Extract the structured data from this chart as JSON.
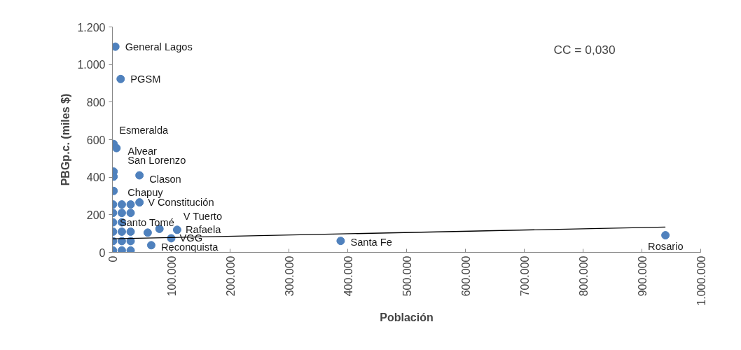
{
  "chart_data": {
    "type": "scatter",
    "xlabel": "Población",
    "ylabel": "PBGp.c. (miles $)",
    "xlim": [
      0,
      1000000
    ],
    "ylim": [
      0,
      1200
    ],
    "xticks": [
      0,
      {
        "value": 100000,
        "label": "100.000"
      },
      {
        "value": 200000,
        "label": "200.000"
      },
      {
        "value": 300000,
        "label": "300.000"
      },
      {
        "value": 400000,
        "label": "400.000"
      },
      {
        "value": 500000,
        "label": "500.000"
      },
      {
        "value": 600000,
        "label": "600.000"
      },
      {
        "value": 700000,
        "label": "700.000"
      },
      {
        "value": 800000,
        "label": "800.000"
      },
      {
        "value": 900000,
        "label": "900.000"
      },
      {
        "value": 1000000,
        "label": "1.000.000"
      }
    ],
    "yticks": [
      0,
      200,
      400,
      600,
      800,
      {
        "value": 1000,
        "label": "1.000"
      },
      {
        "value": 1200,
        "label": "1.200"
      }
    ],
    "grid": false,
    "marker": "circle",
    "series": [
      {
        "color": "#4f81bd",
        "x": [
          5000,
          14000,
          2000,
          7000,
          46000,
          2000,
          2000,
          2000,
          46000,
          80000,
          60000,
          110000,
          100000,
          66000,
          388000,
          940000,
          1000,
          16000,
          31000,
          1000,
          16000,
          31000,
          1000,
          16000,
          31000,
          1000,
          16000,
          1000,
          16000,
          31000,
          1000,
          16000,
          31000
        ],
        "values": [
          1095,
          923,
          577,
          555,
          410,
          430,
          403,
          327,
          266,
          125,
          105,
          120,
          75,
          38,
          61,
          91,
          10,
          10,
          10,
          60,
          60,
          60,
          110,
          110,
          110,
          160,
          160,
          210,
          210,
          210,
          255,
          255,
          255
        ]
      },
      {
        "type": "line",
        "marker": "none",
        "color": "#000000",
        "x": [
          0,
          940000
        ],
        "values": [
          72,
          135
        ]
      }
    ],
    "annotations": [
      {
        "text": "General Lagos",
        "x": 5000,
        "y": 1095
      },
      {
        "text": "PGSM",
        "x": 14000,
        "y": 923
      },
      {
        "text": "Esmeralda",
        "x": 2000,
        "y": 577
      },
      {
        "text": "Alvear",
        "x": 7000,
        "y": 555
      },
      {
        "text": "San Lorenzo",
        "x": 2000,
        "y": 430
      },
      {
        "text": "Clason",
        "x": 46000,
        "y": 410
      },
      {
        "text": "Chapuy",
        "x": 2000,
        "y": 327
      },
      {
        "text": "V Constitución",
        "x": 46000,
        "y": 266
      },
      {
        "text": "V Tuerto",
        "x": 80000,
        "y": 125
      },
      {
        "text": "Santo Tomé",
        "x": 60000,
        "y": 105
      },
      {
        "text": "Rafaela",
        "x": 110000,
        "y": 120
      },
      {
        "text": "VGG",
        "x": 100000,
        "y": 75
      },
      {
        "text": "Reconquista",
        "x": 66000,
        "y": 38
      },
      {
        "text": "Santa Fe",
        "x": 388000,
        "y": 61
      },
      {
        "text": "Rosario",
        "x": 940000,
        "y": 91
      },
      "CC = 0,030"
    ]
  }
}
